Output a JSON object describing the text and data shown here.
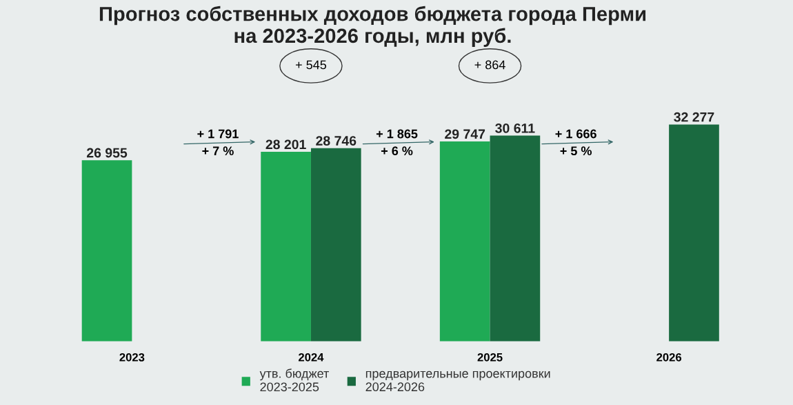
{
  "chart_data": {
    "type": "bar",
    "title": "Прогноз собственных доходов бюджета города Перми\nна 2023-2026 годы, млн руб.",
    "categories": [
      "2023",
      "2024",
      "2025",
      "2026"
    ],
    "series": [
      {
        "name": "утв. бюджет\n2023-2025",
        "color": "#1faa55",
        "values": [
          26955,
          28201,
          29747,
          null
        ],
        "value_labels": [
          "26 955",
          "28 201",
          "29 747",
          null
        ]
      },
      {
        "name": "предварительные проектировки\n2024-2026",
        "color": "#1a6a40",
        "values": [
          null,
          28746,
          30611,
          32277
        ],
        "value_labels": [
          null,
          "28 746",
          "30 611",
          "32 277"
        ]
      }
    ],
    "annotations": [
      "+ 1 791\n+ 7 %",
      "+ 1 865\n+ 6 %",
      "+ 1 666\n+ 5 %",
      "+ 545",
      "+ 864"
    ],
    "legend": "bottom",
    "grid": false
  }
}
